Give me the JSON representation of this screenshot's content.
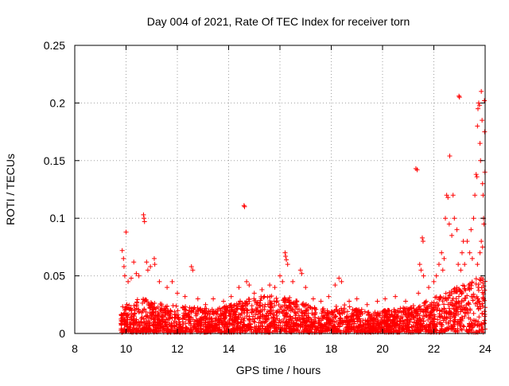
{
  "chart_data": {
    "type": "scatter",
    "title": "Day 004 of 2021, Rate Of TEC Index for receiver torn",
    "xlabel": "GPS time / hours",
    "ylabel": "ROTI / TECUs",
    "xlim": [
      8,
      24
    ],
    "ylim": [
      0,
      0.25
    ],
    "x_ticks": [
      8,
      10,
      12,
      14,
      16,
      18,
      20,
      22,
      24
    ],
    "x_tick_labels": [
      "8",
      "10",
      "12",
      "14",
      "16",
      "18",
      "20",
      "22",
      "24"
    ],
    "y_ticks": [
      0,
      0.05,
      0.1,
      0.15,
      0.2,
      0.25
    ],
    "y_tick_labels": [
      "0",
      "0.05",
      "0.1",
      "0.15",
      "0.2",
      "0.25"
    ],
    "grid": true,
    "marker": "+",
    "series_color": "#ff0000",
    "background_band": {
      "x_start": 9.8,
      "x_end": 24,
      "y_max_by_x": [
        [
          9.8,
          0.022
        ],
        [
          10.5,
          0.03
        ],
        [
          11.5,
          0.024
        ],
        [
          12.5,
          0.022
        ],
        [
          13.5,
          0.02
        ],
        [
          14.5,
          0.028
        ],
        [
          15.5,
          0.032
        ],
        [
          16.5,
          0.03
        ],
        [
          17.5,
          0.02
        ],
        [
          18.5,
          0.024
        ],
        [
          19.5,
          0.018
        ],
        [
          20.5,
          0.02
        ],
        [
          21.5,
          0.025
        ],
        [
          22.5,
          0.035
        ],
        [
          23.5,
          0.045
        ],
        [
          24,
          0.05
        ]
      ]
    },
    "highlight_points": [
      [
        9.85,
        0.072
      ],
      [
        9.9,
        0.065
      ],
      [
        9.92,
        0.058
      ],
      [
        9.95,
        0.05
      ],
      [
        10.0,
        0.088
      ],
      [
        10.08,
        0.045
      ],
      [
        10.2,
        0.048
      ],
      [
        10.3,
        0.062
      ],
      [
        10.4,
        0.052
      ],
      [
        10.5,
        0.05
      ],
      [
        10.68,
        0.103
      ],
      [
        10.7,
        0.1
      ],
      [
        10.72,
        0.097
      ],
      [
        10.8,
        0.062
      ],
      [
        10.85,
        0.055
      ],
      [
        10.95,
        0.058
      ],
      [
        11.1,
        0.065
      ],
      [
        11.12,
        0.06
      ],
      [
        11.3,
        0.045
      ],
      [
        11.6,
        0.04
      ],
      [
        11.8,
        0.045
      ],
      [
        12.0,
        0.035
      ],
      [
        12.3,
        0.032
      ],
      [
        12.55,
        0.058
      ],
      [
        12.6,
        0.055
      ],
      [
        12.8,
        0.03
      ],
      [
        13.1,
        0.025
      ],
      [
        13.4,
        0.03
      ],
      [
        13.8,
        0.028
      ],
      [
        14.1,
        0.032
      ],
      [
        14.4,
        0.04
      ],
      [
        14.6,
        0.111
      ],
      [
        14.62,
        0.11
      ],
      [
        14.7,
        0.045
      ],
      [
        14.8,
        0.042
      ],
      [
        15.0,
        0.035
      ],
      [
        15.3,
        0.038
      ],
      [
        15.6,
        0.042
      ],
      [
        15.8,
        0.04
      ],
      [
        16.0,
        0.05
      ],
      [
        16.1,
        0.045
      ],
      [
        16.2,
        0.07
      ],
      [
        16.22,
        0.067
      ],
      [
        16.25,
        0.064
      ],
      [
        16.3,
        0.06
      ],
      [
        16.5,
        0.045
      ],
      [
        16.8,
        0.055
      ],
      [
        16.85,
        0.052
      ],
      [
        17.0,
        0.04
      ],
      [
        17.3,
        0.03
      ],
      [
        17.6,
        0.028
      ],
      [
        17.9,
        0.032
      ],
      [
        18.15,
        0.042
      ],
      [
        18.3,
        0.048
      ],
      [
        18.4,
        0.045
      ],
      [
        18.7,
        0.028
      ],
      [
        19.0,
        0.03
      ],
      [
        19.4,
        0.025
      ],
      [
        19.8,
        0.028
      ],
      [
        20.1,
        0.03
      ],
      [
        20.5,
        0.032
      ],
      [
        20.9,
        0.028
      ],
      [
        21.3,
        0.143
      ],
      [
        21.35,
        0.142
      ],
      [
        21.4,
        0.035
      ],
      [
        21.45,
        0.06
      ],
      [
        21.5,
        0.055
      ],
      [
        21.6,
        0.05
      ],
      [
        21.55,
        0.083
      ],
      [
        21.58,
        0.08
      ],
      [
        21.8,
        0.04
      ],
      [
        22.0,
        0.045
      ],
      [
        22.1,
        0.05
      ],
      [
        22.2,
        0.06
      ],
      [
        22.3,
        0.07
      ],
      [
        22.35,
        0.055
      ],
      [
        22.4,
        0.065
      ],
      [
        22.45,
        0.1
      ],
      [
        22.5,
        0.12
      ],
      [
        22.55,
        0.118
      ],
      [
        22.6,
        0.095
      ],
      [
        22.62,
        0.154
      ],
      [
        22.7,
        0.085
      ],
      [
        22.75,
        0.12
      ],
      [
        22.8,
        0.1
      ],
      [
        22.9,
        0.09
      ],
      [
        22.95,
        0.06
      ],
      [
        22.98,
        0.206
      ],
      [
        23.0,
        0.205
      ],
      [
        23.05,
        0.055
      ],
      [
        23.1,
        0.07
      ],
      [
        23.15,
        0.08
      ],
      [
        23.2,
        0.06
      ],
      [
        23.3,
        0.08
      ],
      [
        23.4,
        0.07
      ],
      [
        23.45,
        0.09
      ],
      [
        23.5,
        0.065
      ],
      [
        23.55,
        0.1
      ],
      [
        23.6,
        0.12
      ],
      [
        23.65,
        0.138
      ],
      [
        23.68,
        0.136
      ],
      [
        23.7,
        0.18
      ],
      [
        23.72,
        0.195
      ],
      [
        23.75,
        0.2
      ],
      [
        23.78,
        0.198
      ],
      [
        23.8,
        0.165
      ],
      [
        23.82,
        0.15
      ],
      [
        23.85,
        0.21
      ],
      [
        23.88,
        0.185
      ],
      [
        23.9,
        0.13
      ],
      [
        23.92,
        0.12
      ],
      [
        23.94,
        0.1
      ],
      [
        23.95,
        0.095
      ],
      [
        23.97,
        0.202
      ],
      [
        23.98,
        0.175
      ],
      [
        23.99,
        0.14
      ],
      [
        23.85,
        0.08
      ],
      [
        23.9,
        0.075
      ],
      [
        23.8,
        0.07
      ],
      [
        23.7,
        0.06
      ]
    ]
  }
}
